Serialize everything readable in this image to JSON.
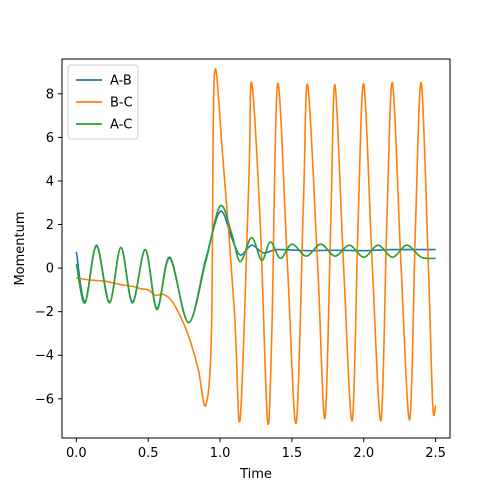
{
  "chart_data": {
    "type": "line",
    "title": "",
    "xlabel": "Time",
    "ylabel": "Momentum",
    "xlim": [
      -0.1,
      2.6
    ],
    "ylim": [
      -7.8,
      9.6
    ],
    "xticks": [
      0.0,
      0.5,
      1.0,
      1.5,
      2.0,
      2.5
    ],
    "xtick_labels": [
      "0.0",
      "0.5",
      "1.0",
      "1.5",
      "2.0",
      "2.5"
    ],
    "yticks": [
      -6,
      -4,
      -2,
      0,
      2,
      4,
      6,
      8
    ],
    "ytick_labels": [
      "−6",
      "−4",
      "−2",
      "0",
      "2",
      "4",
      "6",
      "8"
    ],
    "grid": false,
    "legend": "upper-left",
    "series": [
      {
        "name": "A-B",
        "color": "#1f77b4",
        "points": [
          [
            0.0,
            0.75
          ],
          [
            0.06,
            -1.55
          ],
          [
            0.14,
            1.05
          ],
          [
            0.23,
            -1.55
          ],
          [
            0.31,
            0.95
          ],
          [
            0.39,
            -1.55
          ],
          [
            0.48,
            0.85
          ],
          [
            0.56,
            -1.85
          ],
          [
            0.65,
            0.5
          ],
          [
            0.78,
            -2.5
          ],
          [
            0.9,
            0.4
          ],
          [
            1.0,
            2.6
          ],
          [
            1.08,
            1.4
          ],
          [
            1.14,
            0.6
          ],
          [
            1.22,
            1.05
          ],
          [
            1.3,
            0.7
          ],
          [
            1.4,
            0.85
          ],
          [
            1.6,
            0.8
          ],
          [
            1.8,
            0.82
          ],
          [
            2.0,
            0.8
          ],
          [
            2.2,
            0.85
          ],
          [
            2.5,
            0.85
          ]
        ]
      },
      {
        "name": "B-C",
        "color": "#ff7f0e",
        "points": [
          [
            0.0,
            -0.45
          ],
          [
            0.1,
            -0.55
          ],
          [
            0.2,
            -0.6
          ],
          [
            0.3,
            -0.75
          ],
          [
            0.4,
            -0.85
          ],
          [
            0.45,
            -0.95
          ],
          [
            0.5,
            -1.0
          ],
          [
            0.55,
            -1.25
          ],
          [
            0.6,
            -1.2
          ],
          [
            0.65,
            -1.4
          ],
          [
            0.7,
            -1.9
          ],
          [
            0.75,
            -2.6
          ],
          [
            0.8,
            -3.5
          ],
          [
            0.85,
            -4.7
          ],
          [
            0.9,
            -6.3
          ],
          [
            0.94,
            -3.0
          ],
          [
            0.96,
            8.85
          ],
          [
            1.02,
            5.0
          ],
          [
            1.1,
            -2.0
          ],
          [
            1.14,
            -6.9
          ],
          [
            1.2,
            4.0
          ],
          [
            1.22,
            8.5
          ],
          [
            1.28,
            2.0
          ],
          [
            1.33,
            -7.0
          ],
          [
            1.36,
            -3.0
          ],
          [
            1.4,
            8.45
          ],
          [
            1.47,
            0.0
          ],
          [
            1.53,
            -7.1
          ],
          [
            1.58,
            3.0
          ],
          [
            1.61,
            8.4
          ],
          [
            1.68,
            0.0
          ],
          [
            1.73,
            -6.9
          ],
          [
            1.77,
            2.0
          ],
          [
            1.8,
            8.4
          ],
          [
            1.86,
            0.0
          ],
          [
            1.92,
            -7.0
          ],
          [
            1.96,
            2.0
          ],
          [
            2.0,
            8.45
          ],
          [
            2.06,
            0.0
          ],
          [
            2.12,
            -7.0
          ],
          [
            2.16,
            2.0
          ],
          [
            2.2,
            8.5
          ],
          [
            2.26,
            0.0
          ],
          [
            2.32,
            -6.95
          ],
          [
            2.36,
            2.0
          ],
          [
            2.4,
            8.5
          ],
          [
            2.45,
            0.0
          ],
          [
            2.48,
            -6.3
          ],
          [
            2.5,
            -6.3
          ]
        ]
      },
      {
        "name": "A-C",
        "color": "#2ca02c",
        "points": [
          [
            0.0,
            0.2
          ],
          [
            0.06,
            -1.6
          ],
          [
            0.14,
            1.0
          ],
          [
            0.23,
            -1.6
          ],
          [
            0.31,
            0.95
          ],
          [
            0.39,
            -1.6
          ],
          [
            0.48,
            0.85
          ],
          [
            0.56,
            -1.9
          ],
          [
            0.65,
            0.45
          ],
          [
            0.78,
            -2.5
          ],
          [
            0.9,
            0.3
          ],
          [
            1.0,
            2.85
          ],
          [
            1.08,
            1.6
          ],
          [
            1.14,
            0.3
          ],
          [
            1.22,
            1.4
          ],
          [
            1.29,
            0.35
          ],
          [
            1.35,
            1.2
          ],
          [
            1.42,
            0.45
          ],
          [
            1.5,
            1.1
          ],
          [
            1.6,
            0.55
          ],
          [
            1.7,
            1.1
          ],
          [
            1.8,
            0.55
          ],
          [
            1.9,
            1.05
          ],
          [
            2.0,
            0.5
          ],
          [
            2.1,
            1.05
          ],
          [
            2.2,
            0.5
          ],
          [
            2.3,
            1.05
          ],
          [
            2.4,
            0.5
          ],
          [
            2.5,
            0.45
          ]
        ]
      }
    ]
  }
}
